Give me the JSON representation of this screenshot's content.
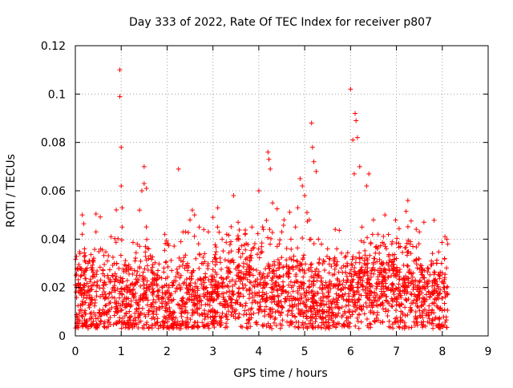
{
  "chart_data": {
    "type": "scatter",
    "title": "Day 333 of 2022, Rate Of TEC Index for receiver p807",
    "xlabel": "GPS time / hours",
    "ylabel": "ROTI / TECUs",
    "xlim": [
      0,
      9
    ],
    "ylim": [
      0,
      0.12
    ],
    "x_ticks": [
      "0",
      "1",
      "2",
      "3",
      "4",
      "5",
      "6",
      "7",
      "8",
      "9"
    ],
    "y_ticks": [
      "0",
      "0.02",
      "0.04",
      "0.06",
      "0.08",
      "0.1",
      "0.12"
    ],
    "grid": true,
    "marker": "plus",
    "series": [
      {
        "name": "ROTI",
        "color": "#ff0000",
        "points": [
          [
            0.05,
            0.028
          ],
          [
            0.1,
            0.034
          ],
          [
            0.15,
            0.05
          ],
          [
            0.15,
            0.042
          ],
          [
            0.2,
            0.036
          ],
          [
            0.3,
            0.031
          ],
          [
            0.45,
            0.043
          ],
          [
            0.55,
            0.036
          ],
          [
            0.7,
            0.031
          ],
          [
            0.85,
            0.03
          ],
          [
            0.97,
            0.11
          ],
          [
            0.97,
            0.099
          ],
          [
            1.0,
            0.078
          ],
          [
            1.0,
            0.062
          ],
          [
            1.02,
            0.053
          ],
          [
            1.02,
            0.045
          ],
          [
            1.1,
            0.029
          ],
          [
            1.3,
            0.031
          ],
          [
            1.35,
            0.038
          ],
          [
            1.4,
            0.052
          ],
          [
            1.45,
            0.06
          ],
          [
            1.5,
            0.063
          ],
          [
            1.5,
            0.07
          ],
          [
            1.55,
            0.061
          ],
          [
            1.6,
            0.036
          ],
          [
            1.8,
            0.027
          ],
          [
            1.95,
            0.042
          ],
          [
            2.0,
            0.038
          ],
          [
            2.1,
            0.027
          ],
          [
            2.25,
            0.069
          ],
          [
            2.3,
            0.039
          ],
          [
            2.4,
            0.043
          ],
          [
            2.5,
            0.048
          ],
          [
            2.55,
            0.052
          ],
          [
            2.6,
            0.05
          ],
          [
            2.7,
            0.045
          ],
          [
            2.9,
            0.043
          ],
          [
            3.0,
            0.049
          ],
          [
            3.1,
            0.045
          ],
          [
            3.2,
            0.04
          ],
          [
            3.3,
            0.042
          ],
          [
            3.45,
            0.058
          ],
          [
            3.55,
            0.047
          ],
          [
            3.7,
            0.042
          ],
          [
            3.85,
            0.045
          ],
          [
            4.0,
            0.06
          ],
          [
            4.1,
            0.044
          ],
          [
            4.2,
            0.076
          ],
          [
            4.22,
            0.073
          ],
          [
            4.25,
            0.069
          ],
          [
            4.3,
            0.055
          ],
          [
            4.4,
            0.037
          ],
          [
            4.5,
            0.043
          ],
          [
            4.55,
            0.048
          ],
          [
            4.7,
            0.04
          ],
          [
            4.8,
            0.045
          ],
          [
            4.85,
            0.053
          ],
          [
            4.9,
            0.065
          ],
          [
            4.95,
            0.062
          ],
          [
            5.0,
            0.058
          ],
          [
            5.05,
            0.051
          ],
          [
            5.1,
            0.048
          ],
          [
            5.15,
            0.088
          ],
          [
            5.17,
            0.078
          ],
          [
            5.2,
            0.072
          ],
          [
            5.25,
            0.068
          ],
          [
            5.3,
            0.04
          ],
          [
            5.5,
            0.036
          ],
          [
            5.7,
            0.036
          ],
          [
            5.9,
            0.033
          ],
          [
            6.0,
            0.102
          ],
          [
            6.05,
            0.081
          ],
          [
            6.08,
            0.067
          ],
          [
            6.1,
            0.092
          ],
          [
            6.12,
            0.089
          ],
          [
            6.15,
            0.082
          ],
          [
            6.2,
            0.07
          ],
          [
            6.25,
            0.045
          ],
          [
            6.35,
            0.062
          ],
          [
            6.4,
            0.067
          ],
          [
            6.5,
            0.048
          ],
          [
            6.6,
            0.042
          ],
          [
            6.75,
            0.05
          ],
          [
            6.9,
            0.038
          ],
          [
            7.0,
            0.032
          ],
          [
            7.25,
            0.056
          ],
          [
            7.3,
            0.038
          ],
          [
            7.5,
            0.043
          ],
          [
            7.6,
            0.047
          ],
          [
            7.8,
            0.03
          ],
          [
            8.0,
            0.026
          ],
          [
            8.05,
            0.032
          ],
          [
            8.1,
            0.04
          ],
          [
            8.12,
            0.038
          ]
        ],
        "density_band": {
          "x_range": [
            0.0,
            8.12
          ],
          "typical_y_range": [
            0.005,
            0.03
          ],
          "centre_profile": [
            [
              0.0,
              0.014
            ],
            [
              0.5,
              0.016
            ],
            [
              1.0,
              0.015
            ],
            [
              1.5,
              0.017
            ],
            [
              2.0,
              0.012
            ],
            [
              2.5,
              0.014
            ],
            [
              3.0,
              0.017
            ],
            [
              3.5,
              0.02
            ],
            [
              4.0,
              0.021
            ],
            [
              4.5,
              0.017
            ],
            [
              5.0,
              0.015
            ],
            [
              5.5,
              0.015
            ],
            [
              6.0,
              0.018
            ],
            [
              6.5,
              0.022
            ],
            [
              7.0,
              0.019
            ],
            [
              7.5,
              0.016
            ],
            [
              8.0,
              0.016
            ]
          ]
        }
      }
    ]
  }
}
